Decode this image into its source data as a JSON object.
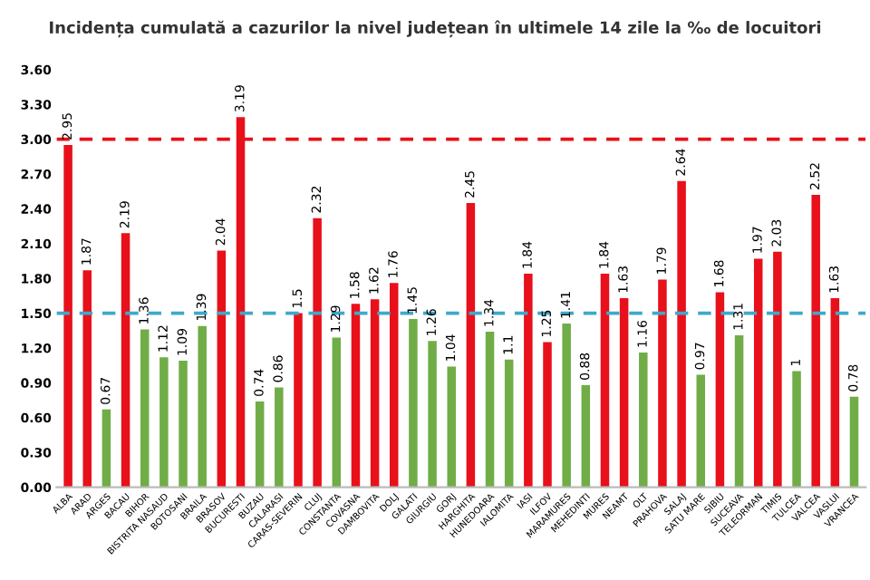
{
  "chart_data": {
    "type": "bar",
    "title": "Incidența cumulată a cazurilor la nivel județean în ultimele 14 zile la ‰ de locuitori",
    "categories": [
      "ALBA",
      "ARAD",
      "ARGES",
      "BACAU",
      "BIHOR",
      "BISTRITA NASAUD",
      "BOTOSANI",
      "BRAILA",
      "BRASOV",
      "BUCURESTI",
      "BUZAU",
      "CALARASI",
      "CARAS-SEVERIN",
      "CLUJ",
      "CONSTANTA",
      "COVASNA",
      "DAMBOVITA",
      "DOLJ",
      "GALATI",
      "GIURGIU",
      "GORJ",
      "HARGHITA",
      "HUNEDOARA",
      "IALOMITA",
      "IASI",
      "ILFOV",
      "MARAMURES",
      "MEHEDINTI",
      "MURES",
      "NEAMT",
      "OLT",
      "PRAHOVA",
      "SALAJ",
      "SATU MARE",
      "SIBIU",
      "SUCEAVA",
      "TELEORMAN",
      "TIMIS",
      "TULCEA",
      "VALCEA",
      "VASLUI",
      "VRANCEA"
    ],
    "values": [
      2.95,
      1.87,
      0.67,
      2.19,
      1.36,
      1.12,
      1.09,
      1.39,
      2.04,
      3.19,
      0.74,
      0.86,
      1.5,
      2.32,
      1.29,
      1.58,
      1.62,
      1.76,
      1.45,
      1.26,
      1.04,
      2.45,
      1.34,
      1.1,
      1.84,
      1.25,
      1.41,
      0.88,
      1.84,
      1.63,
      1.16,
      1.79,
      2.64,
      0.97,
      1.68,
      1.31,
      1.97,
      2.03,
      1,
      2.52,
      1.63,
      0.78
    ],
    "colors": [
      "#e8101a",
      "#e8101a",
      "#70ad47",
      "#e8101a",
      "#70ad47",
      "#70ad47",
      "#70ad47",
      "#70ad47",
      "#e8101a",
      "#e8101a",
      "#70ad47",
      "#70ad47",
      "#e8101a",
      "#e8101a",
      "#70ad47",
      "#e8101a",
      "#e8101a",
      "#e8101a",
      "#70ad47",
      "#70ad47",
      "#70ad47",
      "#e8101a",
      "#70ad47",
      "#70ad47",
      "#e8101a",
      "#e8101a",
      "#70ad47",
      "#70ad47",
      "#e8101a",
      "#e8101a",
      "#70ad47",
      "#e8101a",
      "#e8101a",
      "#70ad47",
      "#e8101a",
      "#70ad47",
      "#e8101a",
      "#e8101a",
      "#70ad47",
      "#e8101a",
      "#e8101a",
      "#70ad47"
    ],
    "ylim": [
      0,
      3.6
    ],
    "yticks": [
      {
        "value": 0,
        "label": "0.00"
      },
      {
        "value": 0.3,
        "label": "0.30"
      },
      {
        "value": 0.6,
        "label": "0.60"
      },
      {
        "value": 0.9,
        "label": "0.90"
      },
      {
        "value": 1.2,
        "label": "1.20"
      },
      {
        "value": 1.5,
        "label": "1.50"
      },
      {
        "value": 1.8,
        "label": "1.80"
      },
      {
        "value": 2.1,
        "label": "2.10"
      },
      {
        "value": 2.4,
        "label": "2.40"
      },
      {
        "value": 2.7,
        "label": "2.70"
      },
      {
        "value": 3.0,
        "label": "3.00"
      },
      {
        "value": 3.3,
        "label": "3.30"
      },
      {
        "value": 3.6,
        "label": "3.60"
      }
    ],
    "ref_lines": [
      {
        "axis": "y",
        "value": 3.0,
        "color": "#e8101a",
        "line_style": "dashed"
      },
      {
        "axis": "y",
        "value": 1.5,
        "color": "#3fa9c9",
        "line_style": "dashed"
      }
    ],
    "data_labels": true,
    "grid": false,
    "legend": false
  }
}
